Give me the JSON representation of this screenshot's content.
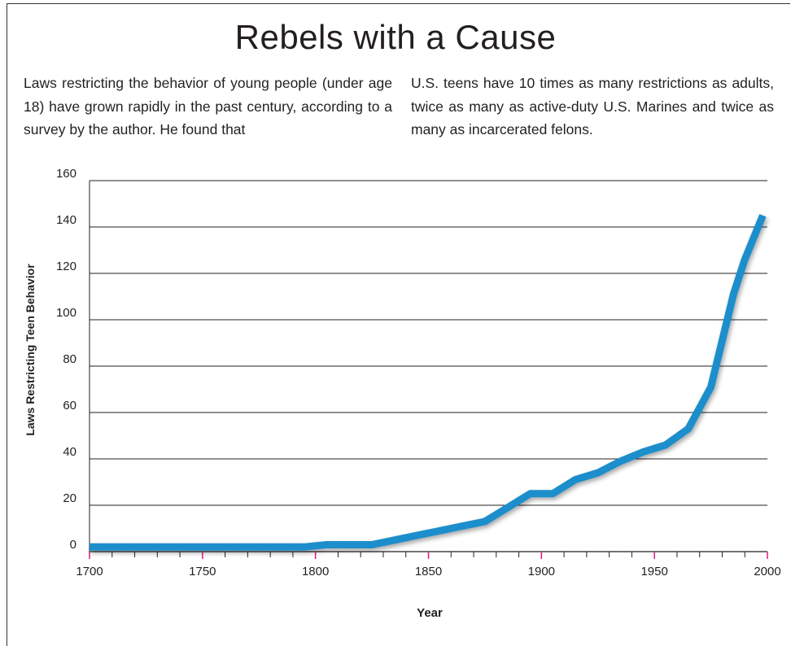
{
  "header": {
    "title": "Rebels with a Cause",
    "intro_left": "Laws restricting the behavior of young people (under age 18) have grown rapidly in the past century, according to a survey by the author. He found that",
    "intro_right": "U.S. teens have 10 times as many restrictions as adults, twice as many as active-duty U.S. Marines and twice as many as incarcerated felons."
  },
  "colors": {
    "line": "#1e8ecb",
    "grid": "#231f20",
    "tick": "#e0197d",
    "text": "#231f20"
  },
  "chart_data": {
    "type": "line",
    "title": "Rebels with a Cause",
    "xlabel": "Year",
    "ylabel": "Laws Restricting Teen Behavior",
    "xlim": [
      1700,
      2000
    ],
    "ylim": [
      0,
      160
    ],
    "x_ticks": [
      1700,
      1750,
      1800,
      1850,
      1900,
      1950,
      2000
    ],
    "y_ticks": [
      0,
      20,
      40,
      60,
      80,
      100,
      120,
      140,
      160
    ],
    "grid": "horizontal",
    "series": [
      {
        "x": [
          1700,
          1795,
          1805,
          1825,
          1835,
          1845,
          1855,
          1865,
          1875,
          1885,
          1895,
          1905,
          1915,
          1925,
          1935,
          1945,
          1955,
          1965,
          1975,
          1985,
          1990,
          1998
        ],
        "values": [
          2,
          2,
          3,
          3,
          5,
          7,
          9,
          11,
          13,
          19,
          25,
          25,
          31,
          34,
          39,
          43,
          46,
          53,
          71,
          111,
          126,
          145
        ]
      }
    ]
  }
}
